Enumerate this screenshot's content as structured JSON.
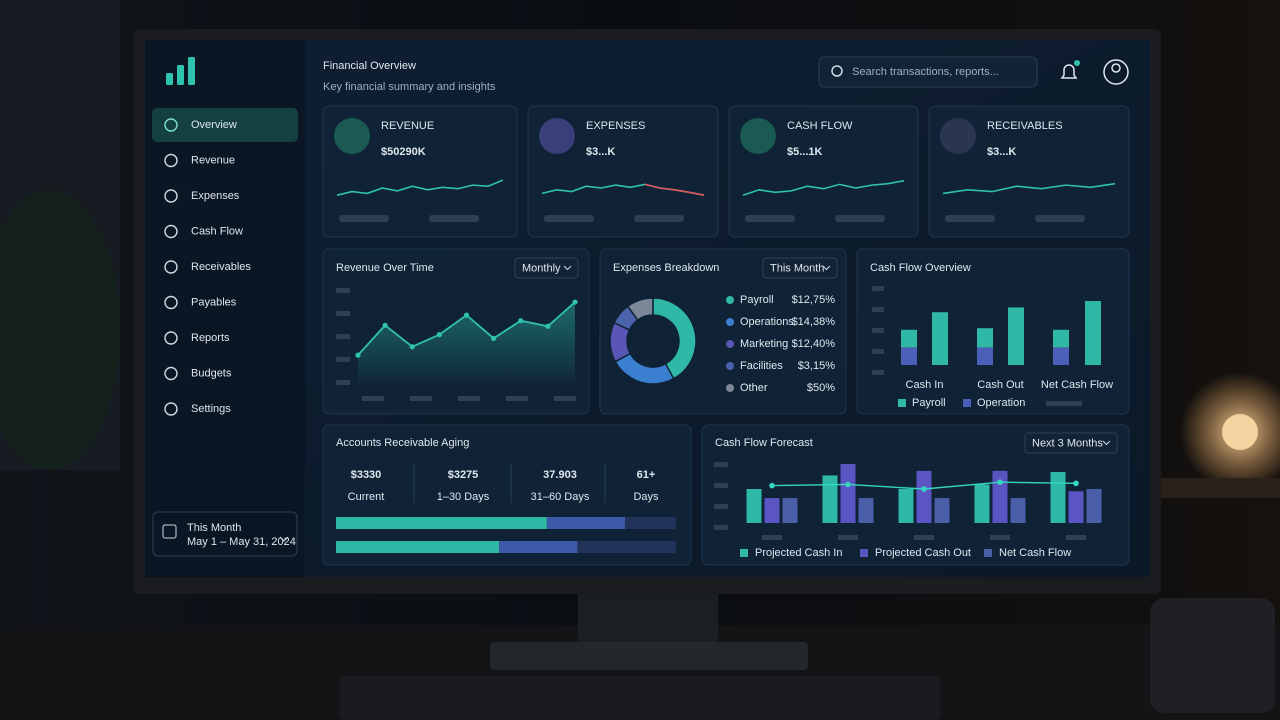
{
  "sidebar": {
    "nav": [
      "Overview",
      "Revenue",
      "Expenses",
      "Cash Flow",
      "Receivables",
      "Payables",
      "Reports",
      "Budgets",
      "Settings"
    ],
    "period": {
      "label": "This Month",
      "range": "May 1 – May 31, 2024"
    }
  },
  "header": {
    "title": "Financial Overview",
    "subtitle": "Key financial summary and insights",
    "search_placeholder": "Search transactions, reports..."
  },
  "kpis": [
    {
      "label": "REVENUE",
      "value": "$50290K",
      "ylim": [
        0,
        100
      ],
      "trend": [
        30,
        40,
        35,
        50,
        42,
        55,
        45,
        52,
        48,
        58,
        55,
        72
      ]
    },
    {
      "label": "EXPENSES",
      "value": "$3...K",
      "ylim": [
        0,
        100
      ],
      "trend": [
        35,
        45,
        40,
        55,
        50,
        58,
        52,
        60,
        50,
        45,
        38,
        30
      ]
    },
    {
      "label": "CASH FLOW",
      "value": "$5...1K",
      "ylim": [
        0,
        100
      ],
      "trend": [
        30,
        45,
        38,
        42,
        55,
        48,
        60,
        50,
        58,
        62,
        70
      ]
    },
    {
      "label": "RECEIVABLES",
      "value": "$3...K",
      "ylim": [
        0,
        100
      ],
      "trend": [
        35,
        45,
        40,
        55,
        48,
        58,
        52,
        62
      ]
    }
  ],
  "revenue_over_time": {
    "title": "Revenue Over Time",
    "period": "Monthly",
    "color": "#2fc2ad",
    "ylim": [
      0,
      100
    ],
    "values": [
      30,
      62,
      39,
      52,
      73,
      48,
      67,
      61,
      87
    ]
  },
  "expenses_breakdown": {
    "title": "Expenses Breakdown",
    "period": "This Month",
    "items": [
      {
        "label": "Payroll",
        "amount": "$12,75%",
        "share": 42,
        "color": "#2fb8a6"
      },
      {
        "label": "Operations",
        "amount": "$14,38%",
        "share": 25,
        "color": "#3a7fd0"
      },
      {
        "label": "Marketing",
        "amount": "$12,40%",
        "share": 15,
        "color": "#5a56b6"
      },
      {
        "label": "Facilities",
        "amount": "$3,15%",
        "share": 8,
        "color": "#4b63ad"
      },
      {
        "label": "Other",
        "amount": "$50%",
        "share": 10,
        "color": "#7b8696"
      }
    ]
  },
  "cash_flow_overview": {
    "title": "Cash Flow Overview",
    "categories": [
      "Cash In",
      null,
      "Cash Out",
      null,
      "Net Cash Flow",
      null
    ],
    "ylim": [
      0,
      50
    ],
    "series": [
      {
        "name": "Payroll",
        "color": "#2fb8a6",
        "values": [
          11,
          33,
          12,
          36,
          11,
          40
        ]
      },
      {
        "name": "Operation",
        "color": "#4b5fb8",
        "values": [
          11,
          null,
          11,
          null,
          11,
          null
        ]
      }
    ]
  },
  "ar_aging": {
    "title": "Accounts Receivable Aging",
    "buckets": [
      {
        "value": "$3330",
        "label": "Current"
      },
      {
        "value": "$3275",
        "label": "1–30 Days"
      },
      {
        "value": "37.903",
        "label": "31–60 Days"
      },
      {
        "value": "61+",
        "label": "Days"
      }
    ],
    "bars": [
      [
        62,
        23,
        15
      ],
      [
        48,
        23,
        29
      ]
    ],
    "colors": [
      "#2fb8a6",
      "#3d5aa8",
      "#22335a"
    ]
  },
  "cash_flow_forecast": {
    "title": "Cash Flow Forecast",
    "period": "Next 3 Months",
    "categories": [
      null,
      null,
      null,
      null,
      null
    ],
    "ylim": [
      0,
      60
    ],
    "series": [
      {
        "name": "Projected Cash In",
        "color": "#2fb8a6",
        "values": [
          30,
          42,
          30,
          34,
          45
        ]
      },
      {
        "name": "Projected Cash Out",
        "color": "#5b55c4",
        "values": [
          22,
          52,
          46,
          46,
          28
        ]
      },
      {
        "name": "Net Cash Flow",
        "color": "#4a5fa8",
        "values": [
          22,
          22,
          22,
          22,
          30
        ]
      },
      {
        "color": "#35d6bf",
        "values": [
          33,
          34,
          30,
          36,
          35
        ]
      }
    ]
  }
}
